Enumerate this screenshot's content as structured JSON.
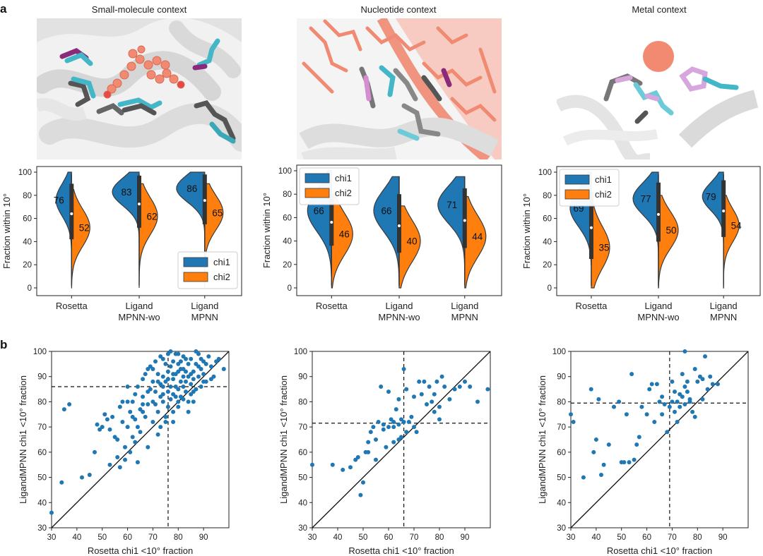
{
  "panel_labels": [
    "a",
    "b"
  ],
  "contexts": [
    "Small-molecule context",
    "Nucleotide context",
    "Metal context"
  ],
  "colors": {
    "chi1": "#1f77b4",
    "chi2": "#ff7f0e",
    "scatter": "#1f77b4",
    "outline": "#3a3a3a",
    "box": "#333333"
  },
  "chart_data": [
    {
      "type": "violin",
      "title": "Small-molecule context",
      "ylabel": "Fraction within 10°",
      "ylim": [
        0,
        100
      ],
      "yticks": [
        0,
        20,
        40,
        60,
        80,
        100
      ],
      "categories": [
        "Rosetta",
        "Ligand MPNN-wo",
        "Ligand MPNN"
      ],
      "series": [
        {
          "name": "chi1",
          "medians": [
            76,
            83,
            86
          ]
        },
        {
          "name": "chi2",
          "medians": [
            52,
            62,
            65
          ]
        }
      ],
      "legend": "bottom-right"
    },
    {
      "type": "violin",
      "title": "Nucleotide context",
      "ylabel": "Fraction within 10°",
      "ylim": [
        0,
        100
      ],
      "yticks": [
        0,
        20,
        40,
        60,
        80,
        100
      ],
      "categories": [
        "Rosetta",
        "Ligand MPNN-wo",
        "Ligand MPNN"
      ],
      "series": [
        {
          "name": "chi1",
          "medians": [
            66,
            66,
            71
          ]
        },
        {
          "name": "chi2",
          "medians": [
            46,
            40,
            44
          ]
        }
      ],
      "legend": "top-left"
    },
    {
      "type": "violin",
      "title": "Metal context",
      "ylabel": "Fraction within 10°",
      "ylim": [
        0,
        100
      ],
      "yticks": [
        0,
        20,
        40,
        60,
        80,
        100
      ],
      "categories": [
        "Rosetta",
        "Ligand MPNN-wo",
        "Ligand MPNN"
      ],
      "series": [
        {
          "name": "chi1",
          "medians": [
            69,
            77,
            79
          ]
        },
        {
          "name": "chi2",
          "medians": [
            35,
            50,
            54
          ]
        }
      ],
      "legend": "top-left"
    },
    {
      "type": "scatter",
      "xlabel": "Rosetta chi1 <10° fraction",
      "ylabel": "LigandMPNN chi1 <10° fraction",
      "xlim": [
        30,
        100
      ],
      "ylim": [
        30,
        100
      ],
      "xticks": [
        30,
        40,
        50,
        60,
        70,
        80,
        90
      ],
      "yticks": [
        30,
        40,
        50,
        60,
        70,
        80,
        90,
        100
      ],
      "mean_x": 76,
      "mean_y": 86,
      "points": [
        [
          30,
          36
        ],
        [
          34,
          48
        ],
        [
          35,
          77
        ],
        [
          37,
          79
        ],
        [
          42,
          50
        ],
        [
          45,
          51
        ],
        [
          47,
          60
        ],
        [
          48,
          71
        ],
        [
          49,
          69
        ],
        [
          50,
          70
        ],
        [
          51,
          75
        ],
        [
          52,
          73
        ],
        [
          53,
          69
        ],
        [
          54,
          74
        ],
        [
          55,
          66
        ],
        [
          56,
          65
        ],
        [
          56,
          58
        ],
        [
          57,
          78
        ],
        [
          58,
          80
        ],
        [
          58,
          72
        ],
        [
          59,
          62
        ],
        [
          60,
          86
        ],
        [
          60,
          70
        ],
        [
          61,
          76
        ],
        [
          62,
          80
        ],
        [
          62,
          66
        ],
        [
          63,
          83
        ],
        [
          63,
          73
        ],
        [
          64,
          86
        ],
        [
          64,
          56
        ],
        [
          65,
          77
        ],
        [
          65,
          68
        ],
        [
          66,
          82
        ],
        [
          66,
          89
        ],
        [
          67,
          74
        ],
        [
          67,
          91
        ],
        [
          68,
          79
        ],
        [
          68,
          62
        ],
        [
          69,
          85
        ],
        [
          69,
          94
        ],
        [
          70,
          72
        ],
        [
          70,
          88
        ],
        [
          70,
          80
        ],
        [
          71,
          84
        ],
        [
          71,
          96
        ],
        [
          72,
          76
        ],
        [
          72,
          88
        ],
        [
          72,
          91
        ],
        [
          73,
          82
        ],
        [
          73,
          98
        ],
        [
          73,
          70
        ],
        [
          74,
          86
        ],
        [
          74,
          90
        ],
        [
          74,
          80
        ],
        [
          75,
          95
        ],
        [
          75,
          72
        ],
        [
          75,
          88
        ],
        [
          76,
          84
        ],
        [
          76,
          99
        ],
        [
          76,
          78
        ],
        [
          76,
          92
        ],
        [
          77,
          86
        ],
        [
          77,
          81
        ],
        [
          77,
          94
        ],
        [
          78,
          89
        ],
        [
          78,
          96
        ],
        [
          78,
          83
        ],
        [
          78,
          76
        ],
        [
          79,
          91
        ],
        [
          79,
          86
        ],
        [
          79,
          99
        ],
        [
          80,
          85
        ],
        [
          80,
          92
        ],
        [
          80,
          80
        ],
        [
          81,
          88
        ],
        [
          81,
          96
        ],
        [
          81,
          82
        ],
        [
          82,
          90
        ],
        [
          82,
          86
        ],
        [
          82,
          98
        ],
        [
          83,
          84
        ],
        [
          83,
          92
        ],
        [
          83,
          88
        ],
        [
          84,
          95
        ],
        [
          84,
          80
        ],
        [
          84,
          90
        ],
        [
          85,
          87
        ],
        [
          85,
          97
        ],
        [
          85,
          83
        ],
        [
          86,
          92
        ],
        [
          86,
          89
        ],
        [
          87,
          95
        ],
        [
          87,
          85
        ],
        [
          88,
          90
        ],
        [
          88,
          99
        ],
        [
          89,
          93
        ],
        [
          89,
          86
        ],
        [
          90,
          96
        ],
        [
          90,
          91
        ],
        [
          91,
          88
        ],
        [
          92,
          98
        ],
        [
          93,
          94
        ],
        [
          94,
          90
        ],
        [
          96,
          97
        ],
        [
          98,
          93
        ],
        [
          66,
          76
        ],
        [
          68,
          84
        ],
        [
          71,
          79
        ],
        [
          73,
          87
        ],
        [
          76,
          89
        ],
        [
          79,
          82
        ],
        [
          81,
          93
        ],
        [
          83,
          97
        ],
        [
          86,
          84
        ],
        [
          88,
          94
        ],
        [
          90,
          88
        ],
        [
          93,
          89
        ],
        [
          95,
          96
        ],
        [
          70,
          93
        ],
        [
          74,
          97
        ],
        [
          77,
          100
        ],
        [
          80,
          99
        ],
        [
          82,
          93
        ],
        [
          85,
          91
        ],
        [
          87,
          100
        ],
        [
          89,
          97
        ],
        [
          91,
          95
        ],
        [
          60,
          80
        ],
        [
          62,
          74
        ],
        [
          64,
          70
        ],
        [
          66,
          79
        ],
        [
          68,
          93
        ],
        [
          53,
          55
        ],
        [
          57,
          54
        ],
        [
          59,
          57
        ],
        [
          61,
          60
        ],
        [
          63,
          64
        ],
        [
          72,
          67
        ],
        [
          75,
          74
        ],
        [
          78,
          72
        ],
        [
          80,
          78
        ],
        [
          82,
          81
        ],
        [
          84,
          76
        ],
        [
          86,
          80
        ],
        [
          74,
          83
        ],
        [
          78,
          91
        ],
        [
          80,
          95
        ]
      ]
    },
    {
      "type": "scatter",
      "xlabel": "Rosetta chi1 <10° fraction",
      "ylabel": "LigandMPNN chi1 <10° fraction",
      "xlim": [
        30,
        100
      ],
      "ylim": [
        30,
        100
      ],
      "xticks": [
        30,
        40,
        50,
        60,
        70,
        80,
        90
      ],
      "yticks": [
        30,
        40,
        50,
        60,
        70,
        80,
        90,
        100
      ],
      "mean_x": 66,
      "mean_y": 71.5,
      "points": [
        [
          30,
          55
        ],
        [
          38,
          55
        ],
        [
          42,
          53
        ],
        [
          45,
          54
        ],
        [
          47,
          57
        ],
        [
          48,
          58
        ],
        [
          49,
          43
        ],
        [
          50,
          48
        ],
        [
          51,
          60
        ],
        [
          52,
          60
        ],
        [
          52,
          64
        ],
        [
          53,
          68
        ],
        [
          54,
          70
        ],
        [
          55,
          65
        ],
        [
          56,
          72
        ],
        [
          57,
          86
        ],
        [
          58,
          69
        ],
        [
          59,
          62
        ],
        [
          60,
          84
        ],
        [
          61,
          73
        ],
        [
          62,
          70
        ],
        [
          62,
          72
        ],
        [
          63,
          77
        ],
        [
          64,
          71
        ],
        [
          64,
          81
        ],
        [
          65,
          66
        ],
        [
          65,
          73
        ],
        [
          66,
          93
        ],
        [
          66,
          72
        ],
        [
          67,
          68
        ],
        [
          67,
          85
        ],
        [
          68,
          72
        ],
        [
          69,
          74
        ],
        [
          70,
          82
        ],
        [
          70,
          70
        ],
        [
          71,
          68
        ],
        [
          72,
          88
        ],
        [
          73,
          83
        ],
        [
          74,
          88
        ],
        [
          75,
          79
        ],
        [
          76,
          86
        ],
        [
          77,
          80
        ],
        [
          78,
          76
        ],
        [
          79,
          88
        ],
        [
          80,
          78
        ],
        [
          81,
          90
        ],
        [
          82,
          86
        ],
        [
          84,
          81
        ],
        [
          86,
          85
        ],
        [
          88,
          86
        ],
        [
          90,
          88
        ],
        [
          92,
          86
        ],
        [
          95,
          80
        ],
        [
          99,
          85
        ],
        [
          62,
          64
        ],
        [
          58,
          71
        ],
        [
          55,
          57
        ],
        [
          64,
          65
        ],
        [
          60,
          70
        ],
        [
          80,
          73
        ],
        [
          78,
          83
        ]
      ]
    },
    {
      "type": "scatter",
      "xlabel": "Rosetta chi1 <10° fraction",
      "ylabel": "LigandMPNN chi1 <10° fraction",
      "xlim": [
        30,
        100
      ],
      "ylim": [
        30,
        100
      ],
      "xticks": [
        30,
        40,
        50,
        60,
        70,
        80,
        90
      ],
      "yticks": [
        30,
        40,
        50,
        60,
        70,
        80,
        90,
        100
      ],
      "mean_x": 69,
      "mean_y": 79.5,
      "points": [
        [
          30,
          75
        ],
        [
          31,
          72
        ],
        [
          35,
          50
        ],
        [
          38,
          85
        ],
        [
          39,
          60
        ],
        [
          40,
          65
        ],
        [
          41,
          81
        ],
        [
          42,
          51
        ],
        [
          43,
          55
        ],
        [
          45,
          63
        ],
        [
          47,
          78
        ],
        [
          49,
          80
        ],
        [
          50,
          56
        ],
        [
          51,
          56
        ],
        [
          52,
          75
        ],
        [
          53,
          56
        ],
        [
          54,
          91
        ],
        [
          55,
          57
        ],
        [
          56,
          63
        ],
        [
          57,
          66
        ],
        [
          58,
          78
        ],
        [
          60,
          75
        ],
        [
          61,
          85
        ],
        [
          62,
          87
        ],
        [
          63,
          72
        ],
        [
          64,
          87
        ],
        [
          65,
          80
        ],
        [
          66,
          82
        ],
        [
          67,
          79
        ],
        [
          68,
          68
        ],
        [
          69,
          78
        ],
        [
          70,
          88
        ],
        [
          71,
          84
        ],
        [
          71,
          76
        ],
        [
          72,
          80
        ],
        [
          73,
          83
        ],
        [
          73,
          78
        ],
        [
          74,
          91
        ],
        [
          74,
          82
        ],
        [
          75,
          86
        ],
        [
          75,
          79
        ],
        [
          76,
          84
        ],
        [
          76,
          88
        ],
        [
          77,
          81
        ],
        [
          77,
          80
        ],
        [
          78,
          76
        ],
        [
          79,
          93
        ],
        [
          80,
          88
        ],
        [
          81,
          90
        ],
        [
          82,
          89
        ],
        [
          83,
          98
        ],
        [
          84,
          85
        ],
        [
          85,
          90
        ],
        [
          86,
          87
        ],
        [
          88,
          87
        ],
        [
          72,
          72
        ],
        [
          66,
          75
        ],
        [
          75,
          100
        ],
        [
          79,
          74
        ],
        [
          82,
          81
        ],
        [
          70,
          80
        ]
      ]
    }
  ]
}
